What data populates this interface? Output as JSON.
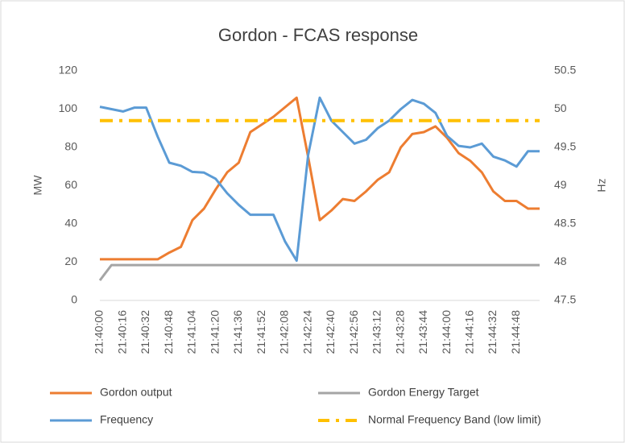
{
  "chart_data": {
    "type": "line",
    "title": "Gordon - FCAS response",
    "y_label": "MW",
    "y2_label": "Hz",
    "categories": [
      "21:40:00",
      null,
      "21:40:16",
      null,
      "21:40:32",
      null,
      "21:40:48",
      null,
      "21:41:04",
      null,
      "21:41:20",
      null,
      "21:41:36",
      null,
      "21:41:52",
      null,
      "21:42:08",
      null,
      "21:42:24",
      null,
      "21:42:40",
      null,
      "21:42:56",
      null,
      "21:43:12",
      null,
      "21:43:28",
      null,
      "21:43:44",
      null,
      "21:44:00",
      null,
      "21:44:16",
      null,
      "21:44:32",
      null,
      "21:44:48",
      null,
      null
    ],
    "series": [
      {
        "name": "Gordon output",
        "color": "#ed7d31",
        "axis": "y",
        "values": [
          21.5,
          21.5,
          21.5,
          21.5,
          21.5,
          21.5,
          25,
          28,
          42,
          48,
          58,
          67,
          72,
          88,
          92,
          96,
          101,
          106,
          75,
          42,
          47,
          53,
          52,
          57,
          63,
          67,
          80,
          87,
          88,
          91,
          85,
          77,
          73,
          67,
          57,
          52,
          52,
          48,
          48
        ]
      },
      {
        "name": "Gordon Energy Target",
        "color": "#a5a5a5",
        "axis": "y",
        "values": [
          10.5,
          18.5,
          18.5,
          18.5,
          18.5,
          18.5,
          18.5,
          18.5,
          18.5,
          18.5,
          18.5,
          18.5,
          18.5,
          18.5,
          18.5,
          18.5,
          18.5,
          18.5,
          18.5,
          18.5,
          18.5,
          18.5,
          18.5,
          18.5,
          18.5,
          18.5,
          18.5,
          18.5,
          18.5,
          18.5,
          18.5,
          18.5,
          18.5,
          18.5,
          18.5,
          18.5,
          18.5,
          18.5,
          18.5
        ]
      },
      {
        "name": "Frequency",
        "color": "#5b9bd5",
        "axis": "y2",
        "values": [
          50.03,
          50.0,
          49.97,
          50.02,
          50.02,
          49.64,
          49.3,
          49.26,
          49.18,
          49.17,
          49.09,
          48.9,
          48.75,
          48.62,
          48.62,
          48.62,
          48.27,
          48.02,
          49.4,
          50.15,
          49.85,
          49.7,
          49.55,
          49.6,
          49.75,
          49.85,
          50.0,
          50.12,
          50.07,
          49.95,
          49.65,
          49.52,
          49.5,
          49.55,
          49.38,
          49.33,
          49.25,
          49.45,
          49.45
        ]
      },
      {
        "name": "Normal Frequency Band (low limit)",
        "color": "#ffc000",
        "axis": "y2",
        "style": "dashdot",
        "values": [
          49.85,
          49.85,
          49.85,
          49.85,
          49.85,
          49.85,
          49.85,
          49.85,
          49.85,
          49.85,
          49.85,
          49.85,
          49.85,
          49.85,
          49.85,
          49.85,
          49.85,
          49.85,
          49.85,
          49.85,
          49.85,
          49.85,
          49.85,
          49.85,
          49.85,
          49.85,
          49.85,
          49.85,
          49.85,
          49.85,
          49.85,
          49.85,
          49.85,
          49.85,
          49.85,
          49.85,
          49.85,
          49.85,
          49.85
        ]
      }
    ],
    "ylim": [
      0,
      120
    ],
    "yticks": [
      0,
      20,
      40,
      60,
      80,
      100,
      120
    ],
    "y2lim": [
      47.5,
      50.5
    ],
    "y2ticks": [
      47.5,
      48,
      48.5,
      49,
      49.5,
      50,
      50.5
    ],
    "grid": false,
    "legend": "bottom"
  }
}
